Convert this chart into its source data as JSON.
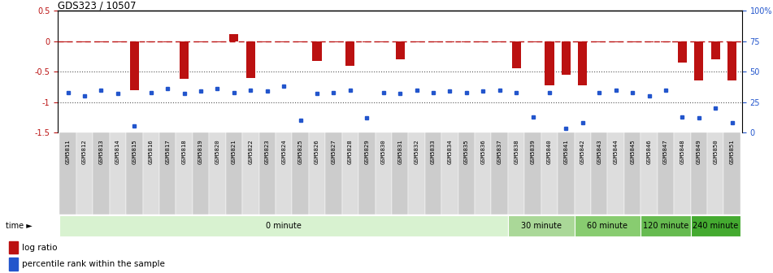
{
  "title": "GDS323 / 10507",
  "samples": [
    "GSM5811",
    "GSM5812",
    "GSM5813",
    "GSM5814",
    "GSM5815",
    "GSM5816",
    "GSM5817",
    "GSM5818",
    "GSM5819",
    "GSM5820",
    "GSM5821",
    "GSM5822",
    "GSM5823",
    "GSM5824",
    "GSM5825",
    "GSM5826",
    "GSM5827",
    "GSM5828",
    "GSM5829",
    "GSM5830",
    "GSM5831",
    "GSM5832",
    "GSM5833",
    "GSM5834",
    "GSM5835",
    "GSM5836",
    "GSM5837",
    "GSM5838",
    "GSM5839",
    "GSM5840",
    "GSM5841",
    "GSM5842",
    "GSM5843",
    "GSM5844",
    "GSM5845",
    "GSM5846",
    "GSM5847",
    "GSM5848",
    "GSM5849",
    "GSM5850",
    "GSM5851"
  ],
  "log_ratio": [
    -0.02,
    -0.02,
    -0.02,
    -0.02,
    -0.8,
    -0.02,
    -0.02,
    -0.62,
    -0.02,
    -0.02,
    0.12,
    -0.6,
    -0.02,
    -0.02,
    -0.02,
    -0.32,
    -0.02,
    -0.4,
    -0.02,
    -0.02,
    -0.3,
    -0.02,
    -0.02,
    -0.02,
    -0.02,
    -0.02,
    -0.02,
    -0.45,
    -0.02,
    -0.72,
    -0.55,
    -0.72,
    -0.02,
    -0.02,
    -0.02,
    -0.02,
    -0.02,
    -0.35,
    -0.65,
    -0.3,
    -0.65
  ],
  "percentile_raw": [
    33,
    30,
    35,
    32,
    5,
    33,
    36,
    32,
    34,
    36,
    33,
    35,
    34,
    38,
    10,
    32,
    33,
    35,
    12,
    33,
    32,
    35,
    33,
    34,
    33,
    34,
    35,
    33,
    13,
    33,
    3,
    8,
    33,
    35,
    33,
    30,
    35,
    13,
    12,
    20,
    8
  ],
  "time_groups": [
    {
      "label": "0 minute",
      "start": 0,
      "end": 27,
      "color": "#d8f2d0"
    },
    {
      "label": "30 minute",
      "start": 27,
      "end": 31,
      "color": "#aad898"
    },
    {
      "label": "60 minute",
      "start": 31,
      "end": 35,
      "color": "#88cc70"
    },
    {
      "label": "120 minute",
      "start": 35,
      "end": 38,
      "color": "#66bb50"
    },
    {
      "label": "240 minute",
      "start": 38,
      "end": 41,
      "color": "#44aa30"
    }
  ],
  "ylim_left": [
    -1.5,
    0.5
  ],
  "ylim_right": [
    0,
    100
  ],
  "right_ticks": [
    0,
    25,
    50,
    75,
    100
  ],
  "right_labels": [
    "0",
    "25",
    "50",
    "75",
    "100%"
  ],
  "left_ticks": [
    -1.5,
    -1.0,
    -0.5,
    0.0,
    0.5
  ],
  "left_tick_labels": [
    "-1.5",
    "-1",
    "-0.5",
    "0",
    "0.5"
  ],
  "bar_color": "#bb1111",
  "dot_color": "#2255cc",
  "hline_color": "#bb1111",
  "dotted_color": "#555555",
  "background_color": "#ffffff",
  "tick_label_bg": "#dddddd",
  "n_samples": 41
}
